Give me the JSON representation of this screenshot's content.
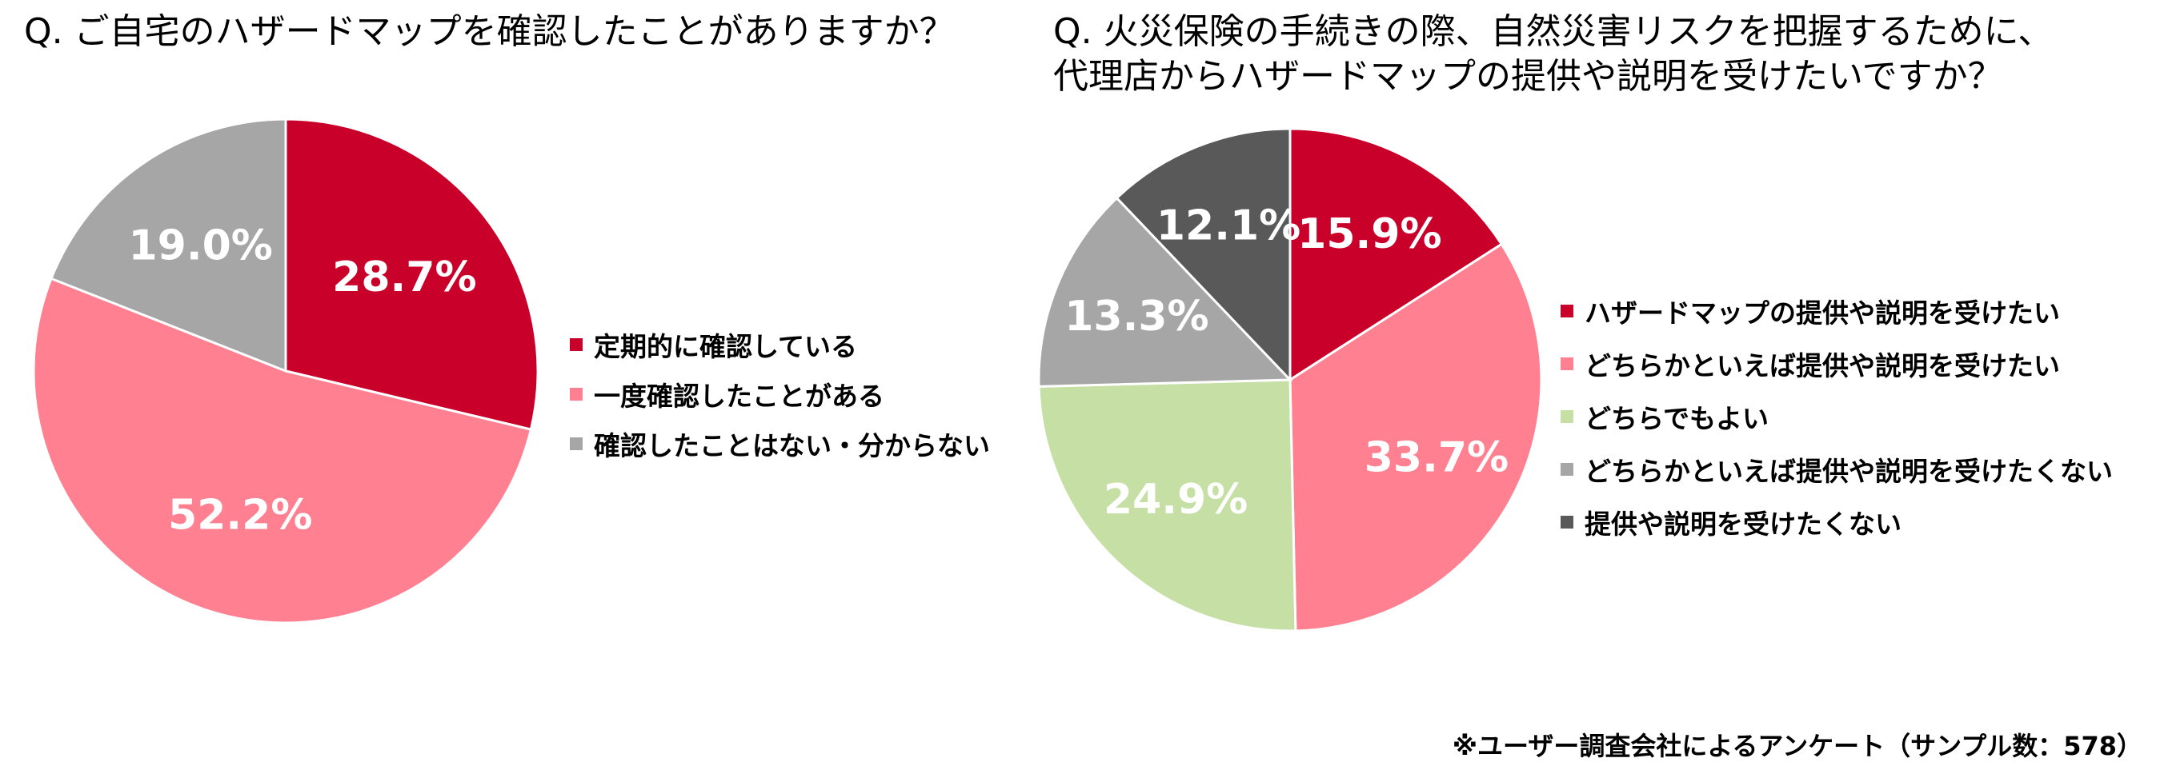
{
  "chart_data": [
    {
      "type": "pie",
      "title": "Q. ご自宅のハザードマップを確認したことがありますか？",
      "slices": [
        {
          "name": "定期的に確認している",
          "value": 28.7,
          "label": "28.7%",
          "color": "#C8002A"
        },
        {
          "name": "一度確認したことがある",
          "value": 52.2,
          "label": "52.2%",
          "color": "#FF8090"
        },
        {
          "name": "確認したことはない・分からない",
          "value": 19.0,
          "label": "19.0%",
          "color": "#A6A6A6"
        }
      ],
      "start_angle": "12 o'clock",
      "direction": "clockwise",
      "legend_placement": "right"
    },
    {
      "type": "pie",
      "title": "Q. 火災保険の手続きの際、自然災害リスクを把握するために、\n代理店からハザードマップの提供や説明を受けたいですか？",
      "slices": [
        {
          "name": "ハザードマップの提供や説明を受けたい",
          "value": 15.9,
          "label": "15.9%",
          "color": "#C8002A"
        },
        {
          "name": "どちらかといえば提供や説明を受けたい",
          "value": 33.7,
          "label": "33.7%",
          "color": "#FF8090"
        },
        {
          "name": "どちらでもよい",
          "value": 24.9,
          "label": "24.9%",
          "color": "#C5DFA4"
        },
        {
          "name": "どちらかといえば提供や説明を受けたくない",
          "value": 13.3,
          "label": "13.3%",
          "color": "#A6A6A6"
        },
        {
          "name": "提供や説明を受けたくない",
          "value": 12.1,
          "label": "12.1%",
          "color": "#595959"
        }
      ],
      "start_angle": "12 o'clock",
      "direction": "clockwise",
      "legend_placement": "right"
    }
  ],
  "note": "※ユーザー調査会社によるアンケート（サンプル数：578）"
}
